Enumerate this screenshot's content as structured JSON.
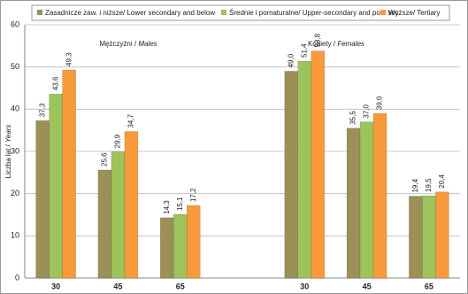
{
  "chart_data": {
    "type": "bar",
    "ylabel": "Liczba lat /",
    "ylabel_italic": "Years",
    "annotations": [
      {
        "label": "Mężczyźni /",
        "label_italic": "Males"
      },
      {
        "label": "Kobiety /",
        "label_italic": "Females"
      }
    ],
    "categories": [
      "30",
      "45",
      "65",
      null,
      "30",
      "45",
      "65"
    ],
    "series": [
      {
        "name": "Zasadnicze zaw. i niższe/ Lower secondary and below",
        "color": "#9c8f58",
        "values": [
          37.3,
          25.6,
          14.3,
          null,
          49.0,
          35.5,
          19.4
        ],
        "value_labels": [
          "37,3",
          "25,6",
          "14,3",
          null,
          "49,0",
          "35,5",
          "19,4"
        ]
      },
      {
        "name": "Średnie i pomaturalne/ Upper-secondary and post sec.",
        "color": "#9cc45a",
        "values": [
          43.6,
          29.9,
          15.1,
          null,
          51.4,
          37.0,
          19.5
        ],
        "value_labels": [
          "43,6",
          "29,9",
          "15,1",
          null,
          "51,4",
          "37,0",
          "19,5"
        ]
      },
      {
        "name": "Wyższe/ Tertiary",
        "color": "#f89a3c",
        "values": [
          49.3,
          34.7,
          17.2,
          null,
          53.8,
          39.0,
          20.4
        ],
        "value_labels": [
          "49,3",
          "34,7",
          "17,2",
          null,
          "53,8",
          "39,0",
          "20,4"
        ]
      }
    ],
    "ylim": [
      0,
      60
    ],
    "yticks": [
      0,
      10,
      20,
      30,
      40,
      50,
      60
    ],
    "grid": true
  }
}
